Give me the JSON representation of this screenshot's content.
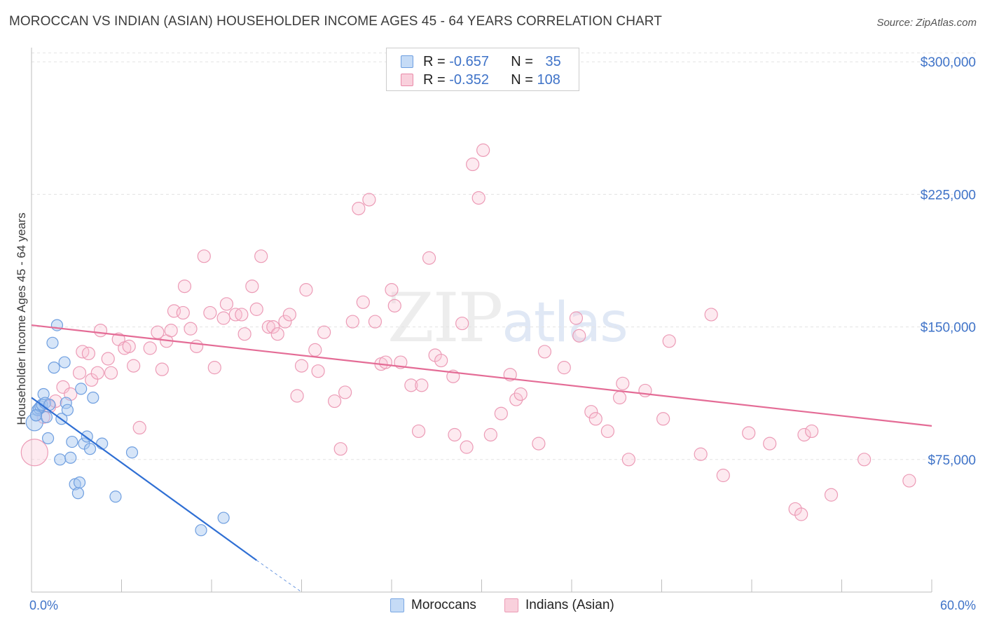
{
  "title": "MOROCCAN VS INDIAN (ASIAN) HOUSEHOLDER INCOME AGES 45 - 64 YEARS CORRELATION CHART",
  "source": "Source: ZipAtlas.com",
  "watermark": {
    "zip": "ZIP",
    "atlas": "atlas"
  },
  "legend": {
    "r_label": "R = ",
    "n_label": "N = ",
    "rows": [
      {
        "r": "-0.657",
        "n": "35",
        "color": "#a8c8f0",
        "border": "#6d9ee0"
      },
      {
        "r": "-0.352",
        "n": "108",
        "color": "#f7c3d2",
        "border": "#e98aa8"
      }
    ]
  },
  "bottom_legend": [
    {
      "label": "Moroccans",
      "color": "#c5dbf6",
      "border": "#7aa7e3"
    },
    {
      "label": "Indians (Asian)",
      "color": "#f9d0dc",
      "border": "#ec9bb5"
    }
  ],
  "colors": {
    "moroccan_fill": "rgba(165,197,240,0.45)",
    "moroccan_stroke": "#6f9fe0",
    "moroccan_line": "#2f6fd4",
    "indian_fill": "rgba(248,196,212,0.35)",
    "indian_stroke": "#ec9bb6",
    "indian_line": "#e46c96",
    "tick_text": "#3f73c8",
    "grid": "#e3e3e3"
  },
  "chart_data": {
    "type": "scatter",
    "title": "MOROCCAN VS INDIAN (ASIAN) HOUSEHOLDER INCOME AGES 45 - 64 YEARS CORRELATION CHART",
    "xlabel": "",
    "ylabel": "Householder Income Ages 45 - 64 years",
    "xlim": [
      0,
      60
    ],
    "ylim": [
      0,
      310000
    ],
    "x_tick_labels": [
      "0.0%",
      "60.0%"
    ],
    "y_ticks": [
      75000,
      150000,
      225000,
      300000
    ],
    "y_tick_labels": [
      "$75,000",
      "$150,000",
      "$225,000",
      "$300,000"
    ],
    "grid": true,
    "series": [
      {
        "name": "Moroccans",
        "r": -0.657,
        "n": 35,
        "trend": {
          "x0": 0,
          "y0": 110000,
          "x1": 15,
          "y1": 18000,
          "dash_to_x": 18,
          "dash_to_y": 0
        },
        "points": [
          [
            0.2,
            96000
          ],
          [
            0.3,
            100000
          ],
          [
            0.4,
            103000
          ],
          [
            0.5,
            104000
          ],
          [
            0.6,
            105000
          ],
          [
            0.7,
            106000
          ],
          [
            0.8,
            112000
          ],
          [
            0.9,
            107000
          ],
          [
            1.0,
            99000
          ],
          [
            1.1,
            87000
          ],
          [
            1.4,
            141000
          ],
          [
            1.5,
            127000
          ],
          [
            1.7,
            151000
          ],
          [
            1.9,
            75000
          ],
          [
            2.0,
            98000
          ],
          [
            2.2,
            130000
          ],
          [
            2.3,
            107000
          ],
          [
            2.4,
            103000
          ],
          [
            2.6,
            76000
          ],
          [
            2.7,
            85000
          ],
          [
            2.9,
            61000
          ],
          [
            3.1,
            56000
          ],
          [
            3.2,
            62000
          ],
          [
            3.3,
            115000
          ],
          [
            3.5,
            84000
          ],
          [
            3.7,
            88000
          ],
          [
            3.9,
            81000
          ],
          [
            4.1,
            110000
          ],
          [
            4.7,
            84000
          ],
          [
            5.6,
            54000
          ],
          [
            6.7,
            79000
          ],
          [
            0.3,
            100000
          ],
          [
            1.2,
            106000
          ],
          [
            11.3,
            35000
          ],
          [
            12.8,
            42000
          ]
        ]
      },
      {
        "name": "Indians (Asian)",
        "r": -0.352,
        "n": 108,
        "trend": {
          "x0": 0,
          "y0": 151000,
          "x1": 60,
          "y1": 94000
        },
        "points": [
          [
            0.2,
            79000
          ],
          [
            0.8,
            99000
          ],
          [
            1.2,
            105000
          ],
          [
            1.6,
            108000
          ],
          [
            2.1,
            116000
          ],
          [
            2.6,
            112000
          ],
          [
            3.2,
            124000
          ],
          [
            3.4,
            136000
          ],
          [
            3.8,
            135000
          ],
          [
            4.0,
            120000
          ],
          [
            4.4,
            124000
          ],
          [
            4.6,
            148000
          ],
          [
            5.1,
            132000
          ],
          [
            5.3,
            124000
          ],
          [
            5.8,
            143000
          ],
          [
            6.2,
            138000
          ],
          [
            6.5,
            139000
          ],
          [
            6.8,
            128000
          ],
          [
            7.2,
            93000
          ],
          [
            7.9,
            138000
          ],
          [
            8.4,
            147000
          ],
          [
            8.7,
            126000
          ],
          [
            9.0,
            142000
          ],
          [
            9.3,
            148000
          ],
          [
            9.5,
            159000
          ],
          [
            10.1,
            158000
          ],
          [
            10.2,
            173000
          ],
          [
            10.6,
            149000
          ],
          [
            11.0,
            139000
          ],
          [
            11.5,
            190000
          ],
          [
            11.9,
            158000
          ],
          [
            12.2,
            127000
          ],
          [
            12.8,
            155000
          ],
          [
            13.0,
            163000
          ],
          [
            13.6,
            157000
          ],
          [
            14.0,
            157000
          ],
          [
            14.2,
            146000
          ],
          [
            14.7,
            173000
          ],
          [
            15.0,
            160000
          ],
          [
            15.3,
            190000
          ],
          [
            15.8,
            150000
          ],
          [
            16.1,
            150000
          ],
          [
            16.4,
            146000
          ],
          [
            16.9,
            153000
          ],
          [
            17.2,
            157000
          ],
          [
            17.7,
            111000
          ],
          [
            18.0,
            128000
          ],
          [
            18.3,
            171000
          ],
          [
            18.9,
            137000
          ],
          [
            19.1,
            125000
          ],
          [
            19.5,
            147000
          ],
          [
            20.2,
            108000
          ],
          [
            20.6,
            81000
          ],
          [
            20.9,
            113000
          ],
          [
            21.4,
            153000
          ],
          [
            21.8,
            217000
          ],
          [
            22.1,
            164000
          ],
          [
            22.5,
            222000
          ],
          [
            22.9,
            153000
          ],
          [
            23.3,
            129000
          ],
          [
            23.6,
            130000
          ],
          [
            24.0,
            171000
          ],
          [
            24.2,
            162000
          ],
          [
            24.6,
            130000
          ],
          [
            25.3,
            117000
          ],
          [
            25.8,
            91000
          ],
          [
            26.0,
            117000
          ],
          [
            26.5,
            189000
          ],
          [
            26.9,
            134000
          ],
          [
            27.3,
            131000
          ],
          [
            28.1,
            122000
          ],
          [
            28.2,
            89000
          ],
          [
            28.7,
            152000
          ],
          [
            29.0,
            82000
          ],
          [
            29.4,
            242000
          ],
          [
            29.8,
            223000
          ],
          [
            30.1,
            250000
          ],
          [
            30.6,
            89000
          ],
          [
            31.3,
            101000
          ],
          [
            31.9,
            123000
          ],
          [
            32.3,
            109000
          ],
          [
            32.6,
            112000
          ],
          [
            33.8,
            84000
          ],
          [
            34.2,
            136000
          ],
          [
            35.5,
            127000
          ],
          [
            36.3,
            155000
          ],
          [
            36.5,
            145000
          ],
          [
            37.3,
            102000
          ],
          [
            37.6,
            98000
          ],
          [
            38.4,
            91000
          ],
          [
            39.2,
            110000
          ],
          [
            39.4,
            118000
          ],
          [
            39.8,
            75000
          ],
          [
            40.9,
            114000
          ],
          [
            42.1,
            98000
          ],
          [
            42.5,
            142000
          ],
          [
            44.6,
            78000
          ],
          [
            45.3,
            157000
          ],
          [
            46.1,
            66000
          ],
          [
            47.8,
            90000
          ],
          [
            49.2,
            84000
          ],
          [
            50.9,
            47000
          ],
          [
            51.3,
            44000
          ],
          [
            51.5,
            89000
          ],
          [
            52.0,
            91000
          ],
          [
            53.3,
            55000
          ],
          [
            55.5,
            75000
          ],
          [
            58.5,
            63000
          ]
        ]
      }
    ]
  }
}
